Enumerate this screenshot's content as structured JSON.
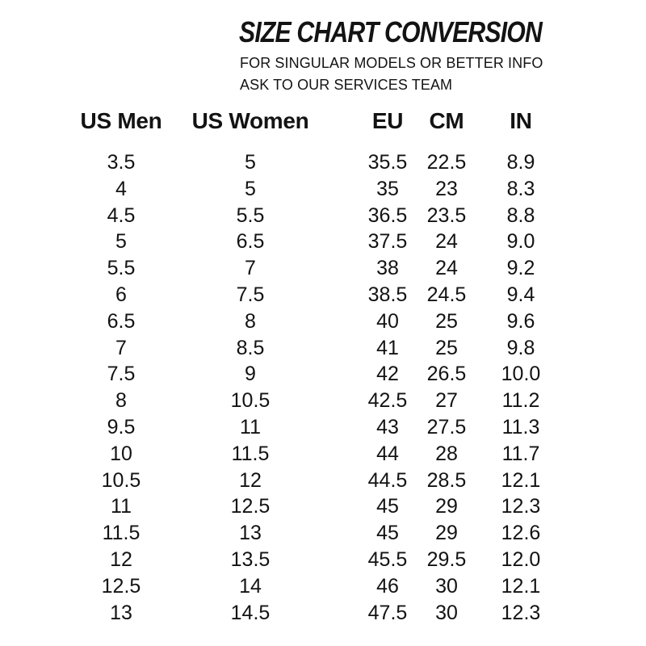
{
  "header": {
    "title": "SIZE CHART CONVERSION",
    "subtitle_line1": "FOR SINGULAR MODELS OR BETTER INFO",
    "subtitle_line2": "ASK TO OUR SERVICES TEAM"
  },
  "chart_data": {
    "type": "table",
    "title": "SIZE CHART CONVERSION",
    "columns": [
      "US Men",
      "US Women",
      "EU",
      "CM",
      "IN"
    ],
    "rows": [
      [
        "3.5",
        "5",
        "35.5",
        "22.5",
        "8.9"
      ],
      [
        "4",
        "5",
        "35",
        "23",
        "8.3"
      ],
      [
        "4.5",
        "5.5",
        "36.5",
        "23.5",
        "8.8"
      ],
      [
        "5",
        "6.5",
        "37.5",
        "24",
        "9.0"
      ],
      [
        "5.5",
        "7",
        "38",
        "24",
        "9.2"
      ],
      [
        "6",
        "7.5",
        "38.5",
        "24.5",
        "9.4"
      ],
      [
        "6.5",
        "8",
        "40",
        "25",
        "9.6"
      ],
      [
        "7",
        "8.5",
        "41",
        "25",
        "9.8"
      ],
      [
        "7.5",
        "9",
        "42",
        "26.5",
        "10.0"
      ],
      [
        "8",
        "10.5",
        "42.5",
        "27",
        "11.2"
      ],
      [
        "9.5",
        "11",
        "43",
        "27.5",
        "11.3"
      ],
      [
        "10",
        "11.5",
        "44",
        "28",
        "11.7"
      ],
      [
        "10.5",
        "12",
        "44.5",
        "28.5",
        "12.1"
      ],
      [
        "11",
        "12.5",
        "45",
        "29",
        "12.3"
      ],
      [
        "11.5",
        "13",
        "45",
        "29",
        "12.6"
      ],
      [
        "12",
        "13.5",
        "45.5",
        "29.5",
        "12.0"
      ],
      [
        "12.5",
        "14",
        "46",
        "30",
        "12.1"
      ],
      [
        "13",
        "14.5",
        "47.5",
        "30",
        "12.3"
      ]
    ]
  },
  "colors": {
    "text": "#131313",
    "background": "#ffffff"
  }
}
